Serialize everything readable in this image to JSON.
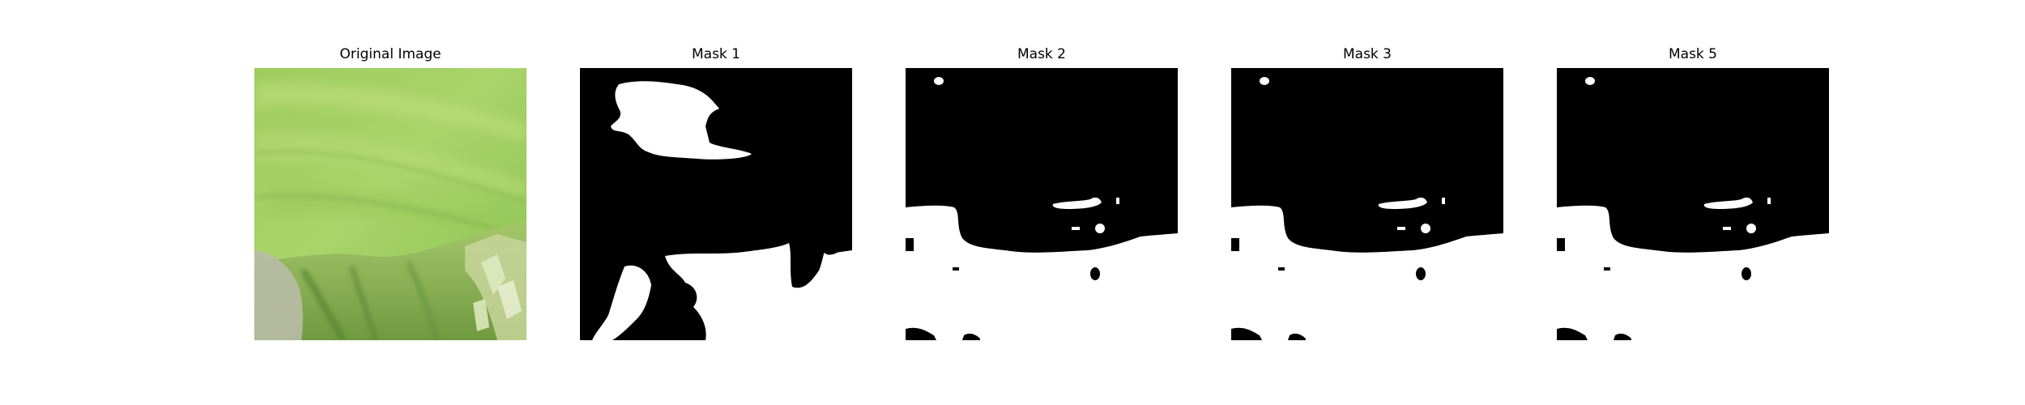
{
  "figure": {
    "panels": [
      {
        "title": "Original Image",
        "kind": "photo"
      },
      {
        "title": "Mask 1",
        "kind": "mask1"
      },
      {
        "title": "Mask 2",
        "kind": "maskB"
      },
      {
        "title": "Mask 3",
        "kind": "maskB"
      },
      {
        "title": "Mask 5",
        "kind": "maskB"
      }
    ]
  },
  "colors": {
    "background": "#ffffff",
    "mask_background": "#000000",
    "mask_foreground": "#ffffff",
    "leaf_light": "#a8d46a",
    "leaf_mid": "#8cc152",
    "leaf_dark": "#5f8f3a",
    "shadow_grey": "#b9bba6"
  }
}
